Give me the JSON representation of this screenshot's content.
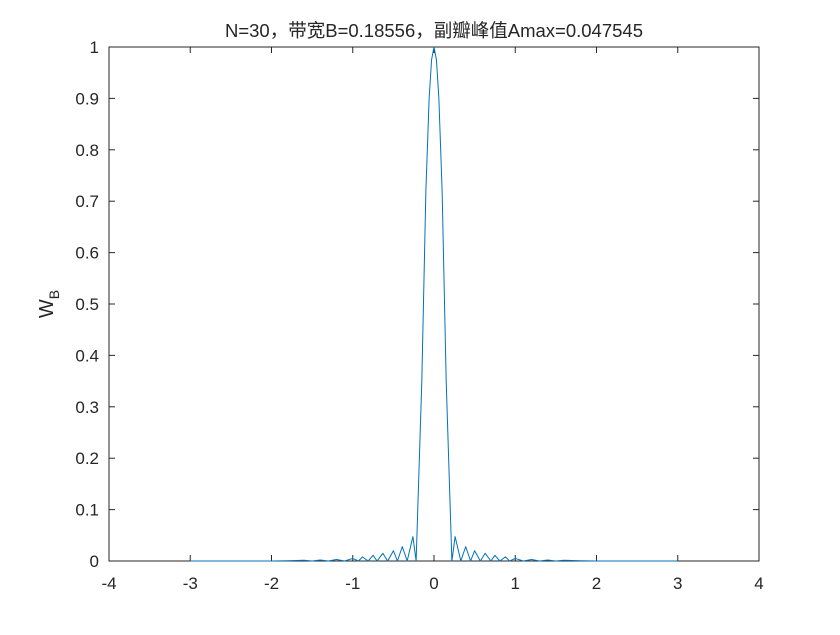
{
  "chart_data": {
    "type": "line",
    "title": "N=30，带宽B=0.18556，副瓣峰值Amax=0.047545",
    "xlabel": "",
    "ylabel": {
      "main": "W",
      "sub": "B"
    },
    "xlim": [
      -4,
      4
    ],
    "ylim": [
      0,
      1
    ],
    "xticks": [
      -4,
      -3,
      -2,
      -1,
      0,
      1,
      2,
      3,
      4
    ],
    "xtick_labels": [
      "-4",
      "-3",
      "-2",
      "-1",
      "0",
      "1",
      "2",
      "3",
      "4"
    ],
    "yticks": [
      0,
      0.1,
      0.2,
      0.3,
      0.4,
      0.5,
      0.6,
      0.7,
      0.8,
      0.9,
      1
    ],
    "ytick_labels": [
      "0",
      "0.1",
      "0.2",
      "0.3",
      "0.4",
      "0.5",
      "0.6",
      "0.7",
      "0.8",
      "0.9",
      "1"
    ],
    "grid": false,
    "line_color": "#0072bd",
    "axis_color": "#262626",
    "series": [
      {
        "x": [
          -3,
          -2.5,
          -2,
          -1.8,
          -1.6,
          -1.5,
          -1.4,
          -1.3,
          -1.2,
          -1.1,
          -1,
          -0.93,
          -0.88,
          -0.81,
          -0.75,
          -0.7,
          -0.63,
          -0.57,
          -0.5,
          -0.45,
          -0.39,
          -0.33,
          -0.26,
          -0.22,
          -0.15,
          -0.1,
          -0.06,
          -0.03,
          0,
          0.03,
          0.06,
          0.1,
          0.15,
          0.22,
          0.26,
          0.33,
          0.39,
          0.45,
          0.5,
          0.57,
          0.63,
          0.7,
          0.75,
          0.81,
          0.88,
          0.93,
          1,
          1.1,
          1.2,
          1.3,
          1.4,
          1.5,
          1.6,
          1.8,
          2,
          2.5,
          3
        ],
        "y": [
          0,
          0,
          0,
          0.0005,
          0.0015,
          0,
          0.002,
          0,
          0.003,
          0,
          0.005,
          0,
          0.008,
          0,
          0.011,
          0,
          0.015,
          0,
          0.02,
          0,
          0.028,
          0,
          0.0475,
          0,
          0.35,
          0.72,
          0.9,
          0.975,
          1,
          0.975,
          0.9,
          0.72,
          0.35,
          0,
          0.0475,
          0,
          0.028,
          0,
          0.02,
          0,
          0.015,
          0,
          0.011,
          0,
          0.008,
          0,
          0.005,
          0,
          0.003,
          0,
          0.002,
          0,
          0.0015,
          0.0005,
          0,
          0,
          0
        ]
      }
    ]
  }
}
